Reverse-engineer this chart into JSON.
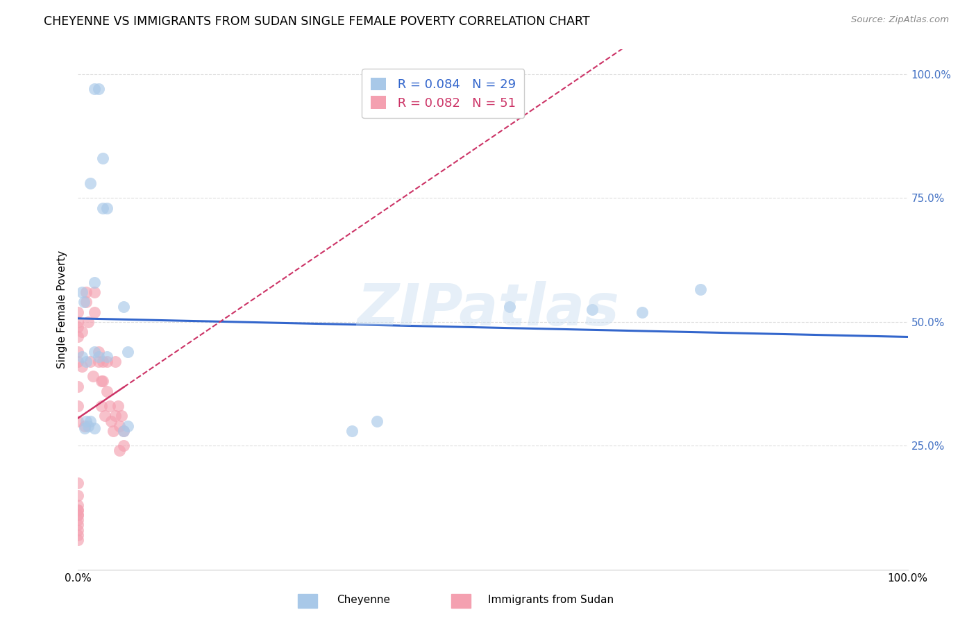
{
  "title": "CHEYENNE VS IMMIGRANTS FROM SUDAN SINGLE FEMALE POVERTY CORRELATION CHART",
  "source": "Source: ZipAtlas.com",
  "ylabel": "Single Female Poverty",
  "legend_label1": "Cheyenne",
  "legend_label2": "Immigrants from Sudan",
  "r1": "0.084",
  "n1": "29",
  "r2": "0.082",
  "n2": "51",
  "cheyenne_color": "#a8c8e8",
  "sudan_color": "#f4a0b0",
  "trend1_color": "#3366cc",
  "trend2_color": "#cc3366",
  "background": "#ffffff",
  "grid_color": "#dddddd",
  "right_label_color": "#4472C4",
  "cheyenne_x": [
    0.02,
    0.025,
    0.03,
    0.015,
    0.035,
    0.02,
    0.03,
    0.005,
    0.007,
    0.055,
    0.06,
    0.02,
    0.025,
    0.005,
    0.01,
    0.035,
    0.01,
    0.015,
    0.02,
    0.008,
    0.012,
    0.06,
    0.055,
    0.68,
    0.75,
    0.62,
    0.52,
    0.33,
    0.36
  ],
  "cheyenne_y": [
    0.97,
    0.97,
    0.83,
    0.78,
    0.73,
    0.58,
    0.73,
    0.56,
    0.54,
    0.53,
    0.44,
    0.44,
    0.43,
    0.43,
    0.42,
    0.43,
    0.3,
    0.3,
    0.285,
    0.285,
    0.29,
    0.29,
    0.28,
    0.52,
    0.565,
    0.525,
    0.53,
    0.28,
    0.3
  ],
  "sudan_x": [
    0.0,
    0.0,
    0.0,
    0.0,
    0.0,
    0.0,
    0.0,
    0.0,
    0.0,
    0.0,
    0.0,
    0.0,
    0.0,
    0.0,
    0.0,
    0.0,
    0.0,
    0.0,
    0.0,
    0.0,
    0.0,
    0.005,
    0.005,
    0.008,
    0.01,
    0.01,
    0.012,
    0.015,
    0.018,
    0.02,
    0.02,
    0.025,
    0.025,
    0.028,
    0.028,
    0.03,
    0.03,
    0.032,
    0.035,
    0.035,
    0.038,
    0.04,
    0.042,
    0.045,
    0.045,
    0.048,
    0.05,
    0.05,
    0.052,
    0.055,
    0.055
  ],
  "sudan_y": [
    0.52,
    0.5,
    0.49,
    0.47,
    0.44,
    0.42,
    0.37,
    0.33,
    0.3,
    0.175,
    0.15,
    0.13,
    0.12,
    0.12,
    0.11,
    0.11,
    0.1,
    0.09,
    0.08,
    0.07,
    0.06,
    0.48,
    0.41,
    0.29,
    0.56,
    0.54,
    0.5,
    0.42,
    0.39,
    0.56,
    0.52,
    0.44,
    0.42,
    0.38,
    0.33,
    0.42,
    0.38,
    0.31,
    0.42,
    0.36,
    0.33,
    0.3,
    0.28,
    0.42,
    0.31,
    0.33,
    0.29,
    0.24,
    0.31,
    0.28,
    0.25
  ],
  "xlim": [
    0.0,
    1.0
  ],
  "ylim": [
    0.0,
    1.05
  ],
  "yticks": [
    0.0,
    0.25,
    0.5,
    0.75,
    1.0
  ],
  "xticks": [
    0.0,
    0.1,
    0.2,
    0.3,
    0.4,
    0.5,
    0.6,
    0.7,
    0.8,
    0.9,
    1.0
  ],
  "watermark": "ZIPatlas"
}
